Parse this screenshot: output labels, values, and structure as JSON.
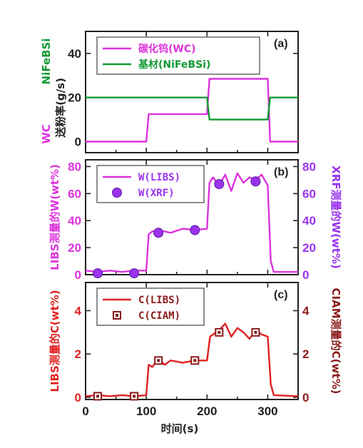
{
  "colors": {
    "magenta": "#dd33dd",
    "green": "#119933",
    "purple": "#9933ee",
    "red": "#e02020",
    "darkred": "#8b1a1a",
    "axis": "#222222"
  },
  "xaxis": {
    "label": "时间(s)",
    "ticks": [
      0,
      100,
      200,
      300
    ],
    "range": [
      0,
      350
    ]
  },
  "chart_data": [
    {
      "type": "line",
      "panel_label": "(a)",
      "ylabel_left": [
        "WC",
        "送粉率(g/s)"
      ],
      "ylabel_left_top": "NiFeBSi",
      "ylim": [
        -5,
        50
      ],
      "yticks": [
        0,
        20,
        40
      ],
      "series": [
        {
          "name": "碳化钨(WC)",
          "color": "#dd33dd",
          "x": [
            0,
            100,
            104,
            200,
            204,
            300,
            304,
            350
          ],
          "y": [
            0,
            0,
            12.5,
            12.5,
            28.5,
            28.5,
            0,
            0
          ]
        },
        {
          "name": "基材(NiFeBSi)",
          "color": "#119933",
          "x": [
            0,
            200,
            204,
            300,
            304,
            350
          ],
          "y": [
            20,
            20,
            10,
            10,
            20,
            20
          ]
        }
      ]
    },
    {
      "type": "line",
      "panel_label": "(b)",
      "ylabel_left": "LIBS测量的W(wt%)",
      "ylabel_right": "XRF测量的W(wt%)",
      "ylim": [
        0,
        85
      ],
      "yticks": [
        0,
        20,
        40,
        60,
        80
      ],
      "series": [
        {
          "name": "W(LIBS)",
          "color": "#dd33dd",
          "x": [
            0,
            20,
            40,
            60,
            80,
            100,
            104,
            110,
            120,
            140,
            160,
            180,
            200,
            204,
            210,
            220,
            230,
            240,
            250,
            260,
            270,
            280,
            290,
            300,
            305,
            310,
            350
          ],
          "y": [
            3,
            2,
            3,
            2,
            3,
            3,
            30,
            32,
            33,
            31,
            34,
            33,
            34,
            68,
            72,
            66,
            74,
            62,
            75,
            68,
            72,
            70,
            74,
            66,
            10,
            2,
            2
          ]
        },
        {
          "name": "W(XRF)",
          "color": "#9933ee",
          "marker": "circle",
          "x": [
            20,
            80,
            120,
            180,
            220,
            280
          ],
          "y": [
            1,
            1,
            31,
            33,
            67,
            69
          ]
        }
      ]
    },
    {
      "type": "line",
      "panel_label": "(c)",
      "ylabel_left": "LIBS测量的C(wt%)",
      "ylabel_right": "CIAM测量的C(wt%)",
      "ylim": [
        -0.1,
        5.3
      ],
      "yticks": [
        0,
        2,
        4
      ],
      "series": [
        {
          "name": "C(LIBS)",
          "color": "#e02020",
          "x": [
            0,
            20,
            40,
            60,
            80,
            100,
            104,
            110,
            120,
            130,
            140,
            160,
            180,
            200,
            205,
            210,
            220,
            230,
            240,
            250,
            260,
            270,
            280,
            290,
            300,
            305,
            310,
            350
          ],
          "y": [
            0.05,
            0.1,
            0.05,
            0.1,
            0.05,
            0.1,
            1.5,
            1.4,
            1.8,
            1.5,
            1.7,
            1.6,
            1.7,
            1.7,
            2.8,
            2.9,
            3.1,
            3.4,
            2.8,
            3.2,
            3.0,
            2.7,
            3.1,
            2.9,
            2.8,
            0.6,
            0.1,
            0.05
          ]
        },
        {
          "name": "C(CIAM)",
          "color": "#8b1a1a",
          "marker": "square",
          "x": [
            20,
            80,
            120,
            180,
            220,
            280
          ],
          "y": [
            0.05,
            0.05,
            1.7,
            1.7,
            3.0,
            3.0
          ]
        }
      ]
    }
  ]
}
